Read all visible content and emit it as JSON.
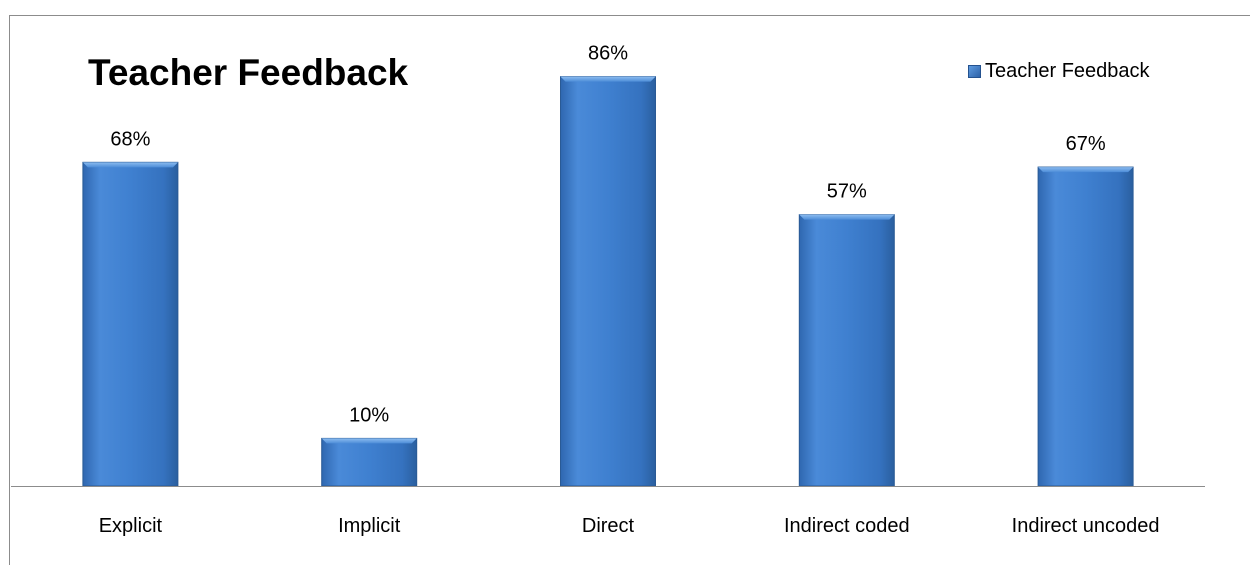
{
  "chart_data": {
    "type": "bar",
    "title": "Teacher Feedback",
    "categories": [
      "Explicit",
      "Implicit",
      "Direct",
      "Indirect coded",
      "Indirect uncoded"
    ],
    "series": [
      {
        "name": "Teacher Feedback",
        "values": [
          68,
          10,
          86,
          57,
          67
        ],
        "data_labels": [
          "68%",
          "10%",
          "86%",
          "57%",
          "67%"
        ]
      }
    ],
    "xlabel": "",
    "ylabel": "",
    "ylim": [
      0,
      100
    ],
    "grid": false,
    "legend_position": "top-right",
    "colors": {
      "bar_top": "#5d9ae0",
      "bar_mid": "#3f7fcc",
      "bar_edge": "#2a5f9f",
      "axis": "#8c8c8c"
    }
  }
}
